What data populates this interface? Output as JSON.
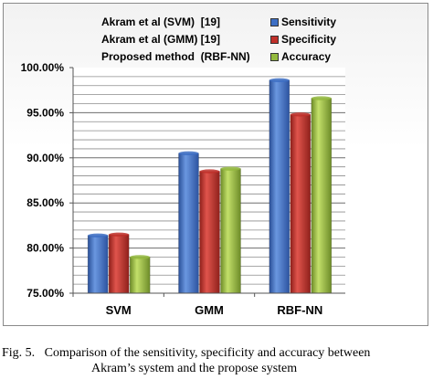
{
  "chart_data": {
    "type": "bar",
    "categories": [
      "SVM",
      "GMM",
      "RBF-NN"
    ],
    "series": [
      {
        "name": "Sensitivity",
        "color": "#3d6fc4",
        "values": [
          81.4,
          90.5,
          98.6
        ]
      },
      {
        "name": "Specificity",
        "color": "#c0302a",
        "values": [
          81.5,
          88.5,
          94.8
        ]
      },
      {
        "name": "Accuracy",
        "color": "#93b93e",
        "values": [
          79.0,
          88.8,
          96.6
        ]
      }
    ],
    "yticks": [
      "75.00%",
      "80.00%",
      "85.00%",
      "90.00%",
      "95.00%",
      "100.00%"
    ],
    "ylim": [
      75,
      100
    ],
    "grid": true,
    "legend_position": "top-right",
    "annotations": [
      "Akram et al (SVM)  [19]",
      "Akram et al (GMM) [19]",
      "Proposed method  (RBF-NN)"
    ]
  },
  "caption": {
    "line1": "Fig. 5.   Comparison of the sensitivity, specificity and accuracy between",
    "line2": "Akram’s system and the propose system"
  }
}
